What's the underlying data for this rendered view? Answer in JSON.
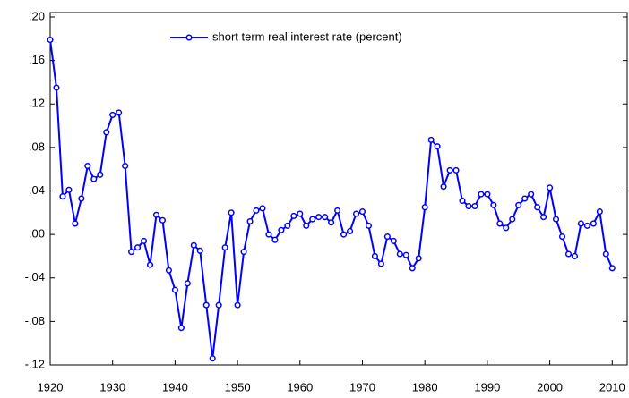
{
  "chart_data": {
    "type": "line",
    "x": [
      1920,
      1921,
      1922,
      1923,
      1924,
      1925,
      1926,
      1927,
      1928,
      1929,
      1930,
      1931,
      1932,
      1933,
      1934,
      1935,
      1936,
      1937,
      1938,
      1939,
      1940,
      1941,
      1942,
      1943,
      1944,
      1945,
      1946,
      1947,
      1948,
      1949,
      1950,
      1951,
      1952,
      1953,
      1954,
      1955,
      1956,
      1957,
      1958,
      1959,
      1960,
      1961,
      1962,
      1963,
      1964,
      1965,
      1966,
      1967,
      1968,
      1969,
      1970,
      1971,
      1972,
      1973,
      1974,
      1975,
      1976,
      1977,
      1978,
      1979,
      1980,
      1981,
      1982,
      1983,
      1984,
      1985,
      1986,
      1987,
      1988,
      1989,
      1990,
      1991,
      1992,
      1993,
      1994,
      1995,
      1996,
      1997,
      1998,
      1999,
      2000,
      2001,
      2002,
      2003,
      2004,
      2005,
      2006,
      2007,
      2008,
      2009,
      2010
    ],
    "series": [
      {
        "name": "short term real interest rate (percent)",
        "color": "#0000ff",
        "values": [
          0.179,
          0.135,
          0.035,
          0.041,
          0.01,
          0.033,
          0.063,
          0.051,
          0.055,
          0.094,
          0.11,
          0.112,
          0.063,
          -0.016,
          -0.012,
          -0.006,
          -0.028,
          0.018,
          0.013,
          -0.033,
          -0.051,
          -0.086,
          -0.045,
          -0.01,
          -0.015,
          -0.065,
          -0.114,
          -0.065,
          -0.012,
          0.02,
          -0.065,
          -0.016,
          0.012,
          0.022,
          0.024,
          0.0,
          -0.005,
          0.004,
          0.008,
          0.017,
          0.019,
          0.008,
          0.014,
          0.016,
          0.016,
          0.011,
          0.022,
          0.0,
          0.003,
          0.019,
          0.021,
          0.008,
          -0.02,
          -0.027,
          -0.002,
          -0.006,
          -0.018,
          -0.019,
          -0.031,
          -0.022,
          0.025,
          0.087,
          0.081,
          0.044,
          0.059,
          0.059,
          0.031,
          0.026,
          0.026,
          0.037,
          0.037,
          0.027,
          0.01,
          0.006,
          0.014,
          0.027,
          0.033,
          0.037,
          0.025,
          0.016,
          0.043,
          0.014,
          -0.002,
          -0.018,
          -0.02,
          0.01,
          0.008,
          0.01,
          0.021,
          -0.018,
          -0.031
        ]
      }
    ],
    "xlim": [
      1920,
      2012.4
    ],
    "xticks": [
      1920,
      1930,
      1940,
      1950,
      1960,
      1970,
      1980,
      1990,
      2000,
      2010
    ],
    "ylim": [
      -0.12,
      0.2
    ],
    "yticks": [
      {
        "value": -0.12,
        "label": "-.12"
      },
      {
        "value": -0.08,
        "label": "-.08"
      },
      {
        "value": -0.04,
        "label": "-.04"
      },
      {
        "value": 0,
        "label": ".00"
      },
      {
        "value": 0.04,
        "label": ".04"
      },
      {
        "value": 0.08,
        "label": ".08"
      },
      {
        "value": 0.12,
        "label": ".12"
      },
      {
        "value": 0.16,
        "label": ".16"
      },
      {
        "value": 0.2,
        "label": ".20"
      }
    ],
    "grid": false,
    "legend": "top"
  }
}
